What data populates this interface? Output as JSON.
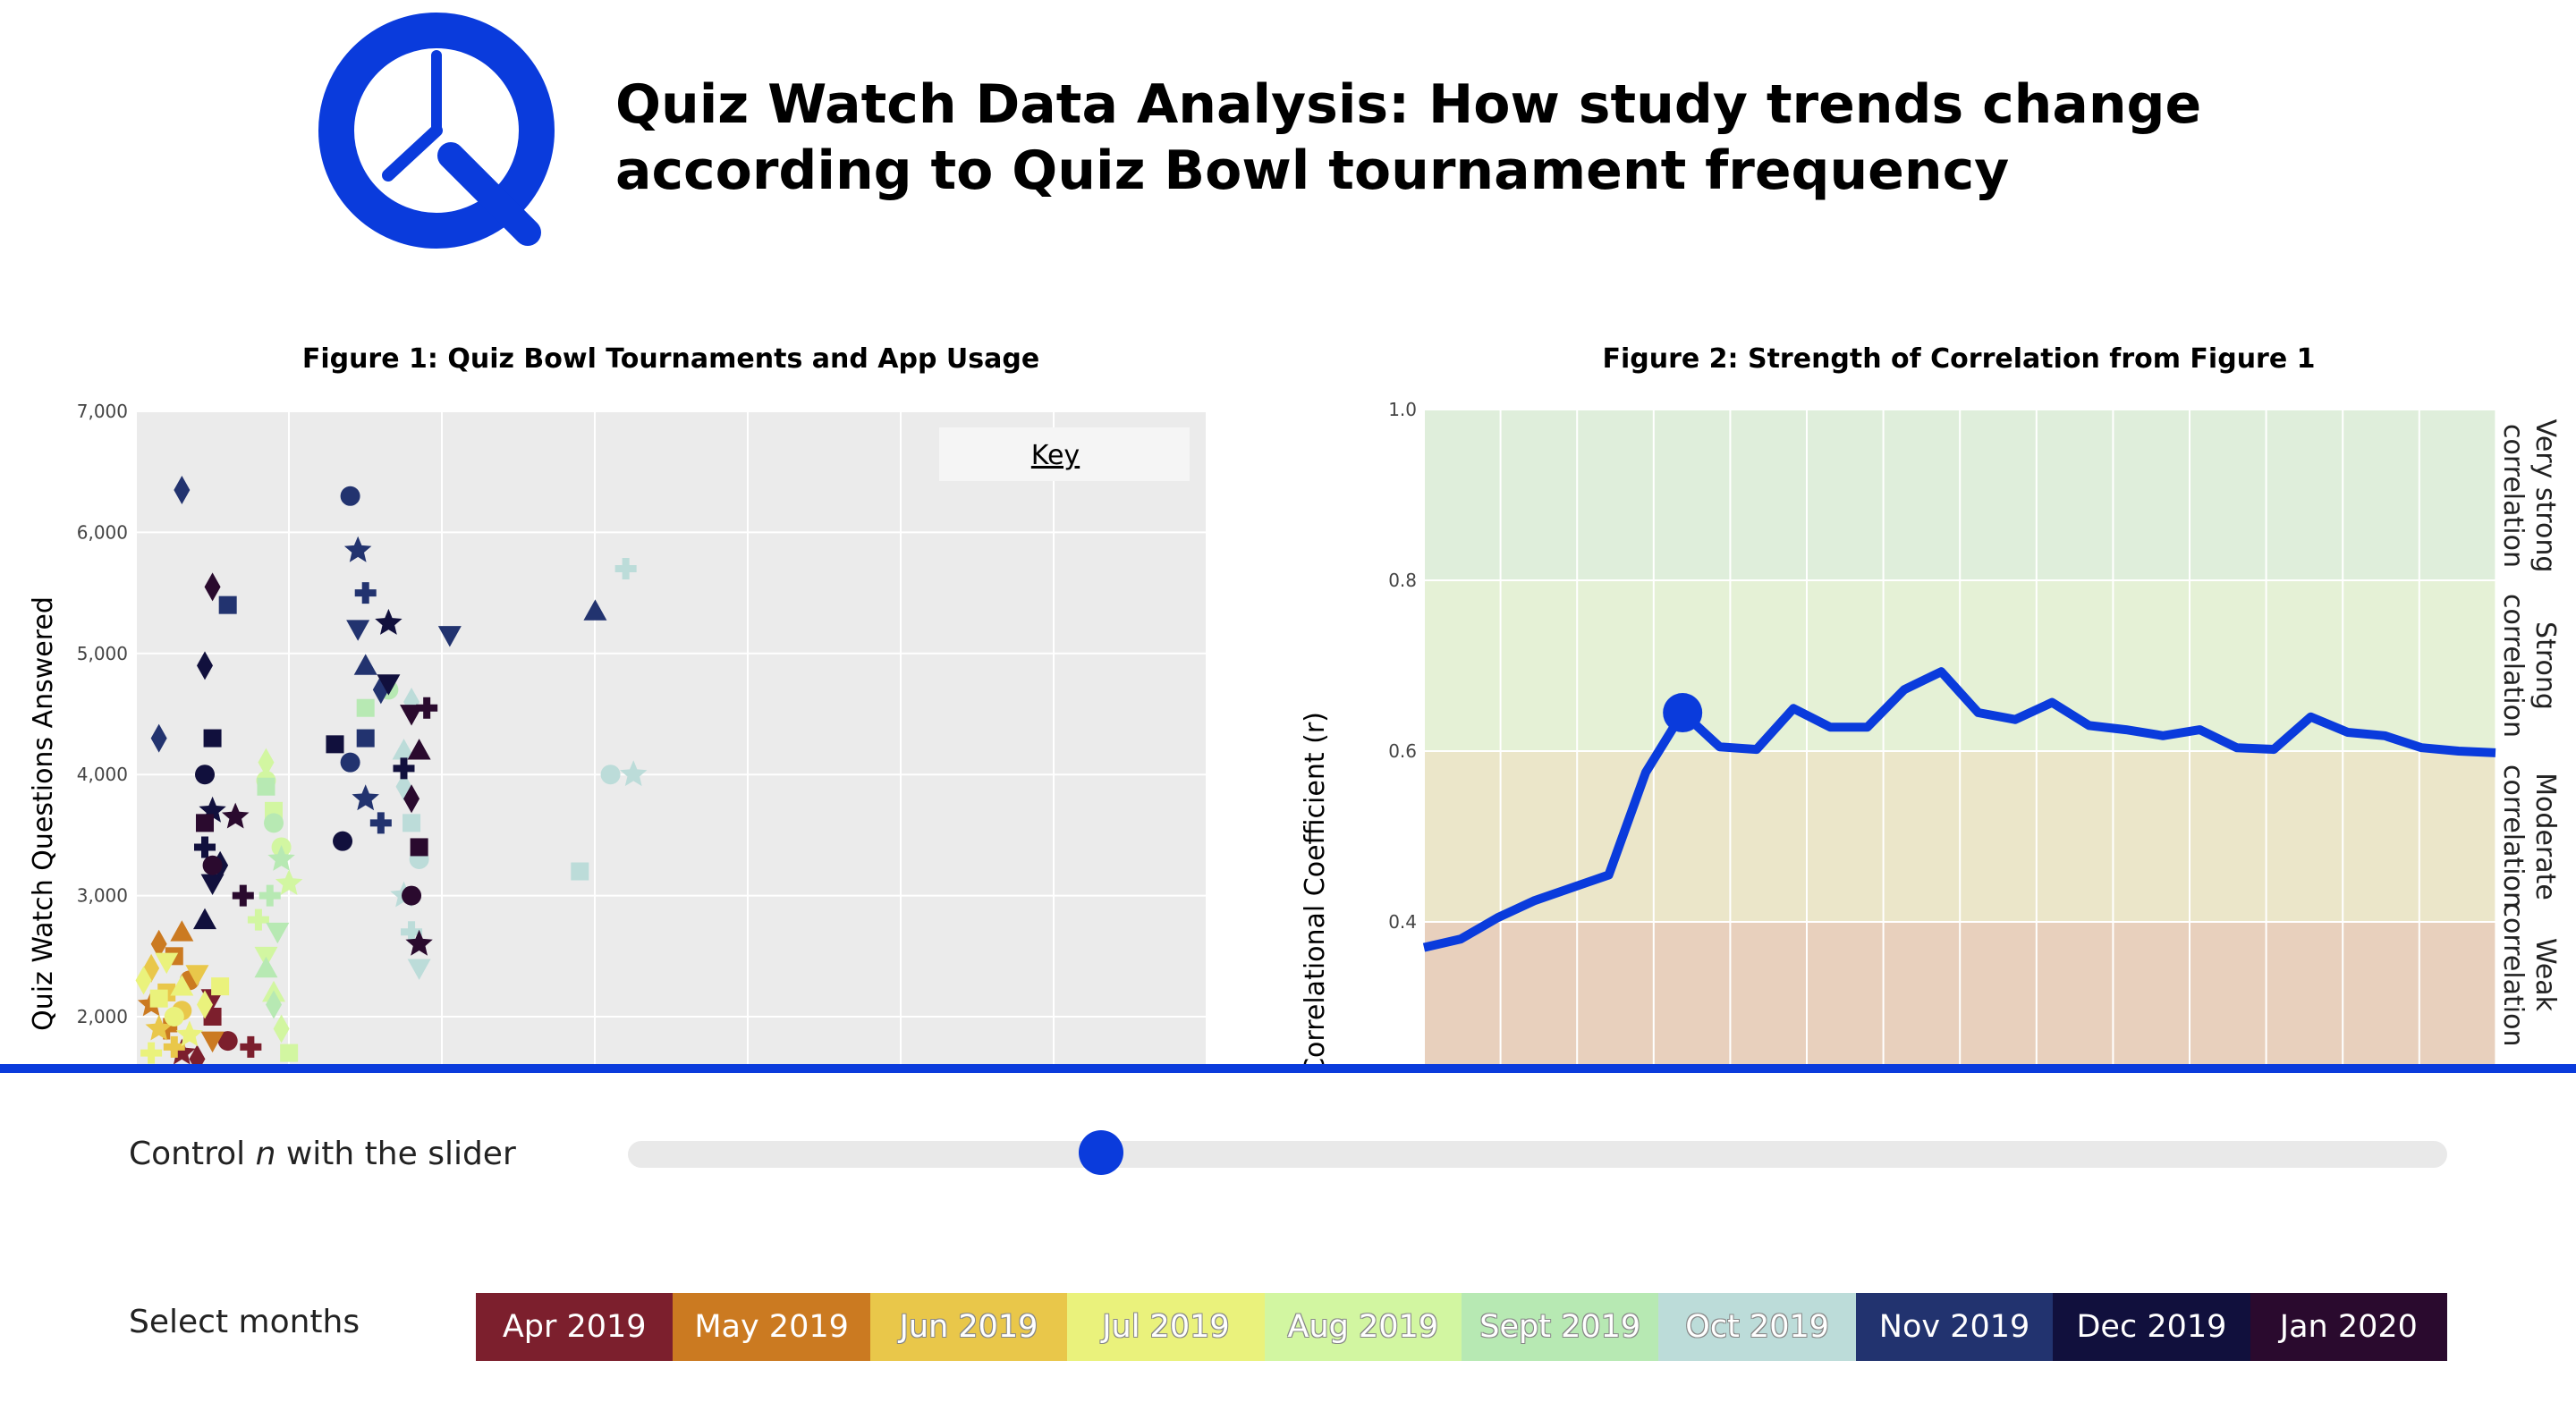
{
  "header": {
    "logo_icon": "quiz-watch-clock-q-logo",
    "title_line1": "Quiz Watch Data Analysis: How study trends change",
    "title_line2": "according to Quiz Bowl tournament frequency"
  },
  "colors": {
    "brand_blue": "#0a3bdc",
    "months": {
      "Apr 2019": "#7c1f2d",
      "May 2019": "#cb7a21",
      "Jun 2019": "#e9c74a",
      "Jul 2019": "#eaf27c",
      "Aug 2019": "#d2f6a1",
      "Sept 2019": "#b7e9b3",
      "Oct 2019": "#bcdcd9",
      "Nov 2019": "#22336f",
      "Dec 2019": "#11103d",
      "Jan 2020": "#2a0a2e"
    }
  },
  "figure1": {
    "title": "Figure 1: Quiz Bowl Tournaments and App Usage",
    "ylabel": "Quiz Watch Questions Answered",
    "key_button": "Key"
  },
  "figure2": {
    "title": "Figure 2: Strength of Correlation from Figure 1",
    "ylabel": "Correlational Coefficient (r)",
    "bands": [
      {
        "label_line1": "Very strong",
        "label_line2": "correlation",
        "from": 0.8,
        "to": 1.0,
        "color": "#dfeedb"
      },
      {
        "label_line1": "Strong",
        "label_line2": "correlation",
        "from": 0.6,
        "to": 0.8,
        "color": "#e5f1d6"
      },
      {
        "label_line1": "Moderate",
        "label_line2": "correlation",
        "from": 0.4,
        "to": 0.6,
        "color": "#ebe6c9"
      },
      {
        "label_line1": "Weak",
        "label_line2": "correlation",
        "from": 0.2,
        "to": 0.4,
        "color": "#e8d0bd"
      }
    ]
  },
  "chart_data": [
    {
      "type": "scatter",
      "title": "Figure 1: Quiz Bowl Tournaments and App Usage",
      "ylabel": "Quiz Watch Questions Answered",
      "xlabel": "",
      "ylim": [
        1500,
        7000
      ],
      "xlim": [
        0,
        14
      ],
      "yticks": [
        "2,000",
        "3,000",
        "4,000",
        "5,000",
        "6,000",
        "7,000"
      ],
      "grid": true,
      "series": [
        {
          "name": "Apr 2019",
          "color": "#7c1f2d",
          "x": [
            0.8,
            1.0,
            1.2,
            0.6,
            1.5,
            1.0
          ],
          "y": [
            1650,
            2000,
            1800,
            1700,
            1750,
            2150
          ]
        },
        {
          "name": "May 2019",
          "color": "#cb7a21",
          "x": [
            0.3,
            0.5,
            0.7,
            0.2,
            0.4,
            1.0,
            0.6
          ],
          "y": [
            2600,
            2500,
            2300,
            2100,
            1900,
            1800,
            2700
          ]
        },
        {
          "name": "Jun 2019",
          "color": "#e9c74a",
          "x": [
            0.2,
            0.4,
            0.6,
            0.3,
            0.5,
            0.8
          ],
          "y": [
            2400,
            2200,
            2050,
            1900,
            1750,
            2350
          ]
        },
        {
          "name": "Jul 2019",
          "color": "#eaf27c",
          "x": [
            0.1,
            0.3,
            0.5,
            0.7,
            0.2,
            0.4,
            0.6,
            0.9,
            1.1
          ],
          "y": [
            2300,
            2150,
            2000,
            1850,
            1700,
            2450,
            2250,
            2100,
            2250
          ]
        },
        {
          "name": "Aug 2019",
          "color": "#d2f6a1",
          "x": [
            1.7,
            1.8,
            1.9,
            2.0,
            1.6,
            1.7,
            1.8,
            1.9,
            2.0,
            1.7
          ],
          "y": [
            4100,
            3700,
            3400,
            3100,
            2800,
            2500,
            2200,
            1900,
            1700,
            3950
          ]
        },
        {
          "name": "Sept 2019",
          "color": "#b7e9b3",
          "x": [
            1.7,
            1.8,
            1.9,
            1.75,
            1.85,
            1.7,
            1.8,
            3.0,
            3.3
          ],
          "y": [
            3900,
            3600,
            3300,
            3000,
            2700,
            2400,
            2100,
            4550,
            4700
          ]
        },
        {
          "name": "Oct 2019",
          "color": "#bcdcd9",
          "x": [
            3.5,
            3.6,
            3.7,
            3.5,
            3.6,
            3.7,
            3.5,
            3.6,
            5.8,
            6.2,
            6.5,
            6.4
          ],
          "y": [
            3900,
            3600,
            3300,
            3000,
            2700,
            2400,
            4200,
            4600,
            3200,
            4000,
            4000,
            5700
          ]
        },
        {
          "name": "Nov 2019",
          "color": "#22336f",
          "x": [
            0.6,
            1.2,
            2.8,
            2.9,
            3.0,
            2.9,
            3.0,
            3.2,
            3.0,
            2.8,
            3.0,
            3.2,
            4.1,
            6.0,
            0.3
          ],
          "y": [
            6350,
            5400,
            6300,
            5850,
            5500,
            5200,
            4900,
            4700,
            4300,
            4100,
            3800,
            3600,
            5150,
            5350,
            4300
          ]
        },
        {
          "name": "Dec 2019",
          "color": "#11103d",
          "x": [
            0.9,
            1.0,
            0.9,
            1.0,
            0.9,
            1.0,
            0.9,
            1.1,
            2.6,
            2.7,
            3.3,
            3.5,
            3.3
          ],
          "y": [
            4900,
            4300,
            4000,
            3700,
            3400,
            3100,
            2800,
            3250,
            4250,
            3450,
            5250,
            4050,
            4750
          ]
        },
        {
          "name": "Jan 2020",
          "color": "#2a0a2e",
          "x": [
            1.0,
            0.9,
            1.0,
            1.3,
            1.4,
            3.6,
            3.7,
            3.6,
            3.7,
            3.6,
            3.7,
            3.8
          ],
          "y": [
            5550,
            3600,
            3250,
            3650,
            3000,
            4500,
            4200,
            3800,
            3400,
            3000,
            2600,
            4550
          ]
        }
      ]
    },
    {
      "type": "line",
      "title": "Figure 2: Strength of Correlation from Figure 1",
      "ylabel": "Correlational Coefficient (r)",
      "xlabel": "",
      "ylim": [
        0.2,
        1.0
      ],
      "yticks": [
        "0.4",
        "0.6",
        "0.8",
        "1.0"
      ],
      "grid": true,
      "x": [
        1,
        2,
        3,
        4,
        5,
        6,
        7,
        8,
        9,
        10,
        11,
        12,
        13,
        14,
        15,
        16,
        17,
        18,
        19,
        20,
        21,
        22,
        23,
        24,
        25,
        26,
        27,
        28,
        29,
        30
      ],
      "values": [
        0.37,
        0.38,
        0.405,
        0.425,
        0.44,
        0.455,
        0.575,
        0.645,
        0.605,
        0.602,
        0.65,
        0.628,
        0.628,
        0.672,
        0.693,
        0.645,
        0.637,
        0.657,
        0.63,
        0.625,
        0.618,
        0.625,
        0.604,
        0.602,
        0.64,
        0.622,
        0.618,
        0.604,
        0.6,
        0.598
      ],
      "highlight_index": 7
    }
  ],
  "controls": {
    "slider_label_prefix": "Control ",
    "slider_label_var": "n",
    "slider_label_suffix": " with the slider",
    "slider_value_fraction": 0.26,
    "months_label": "Select months",
    "months": [
      "Apr 2019",
      "May 2019",
      "Jun 2019",
      "Jul 2019",
      "Aug 2019",
      "Sept 2019",
      "Oct 2019",
      "Nov 2019",
      "Dec 2019",
      "Jan 2020"
    ]
  }
}
